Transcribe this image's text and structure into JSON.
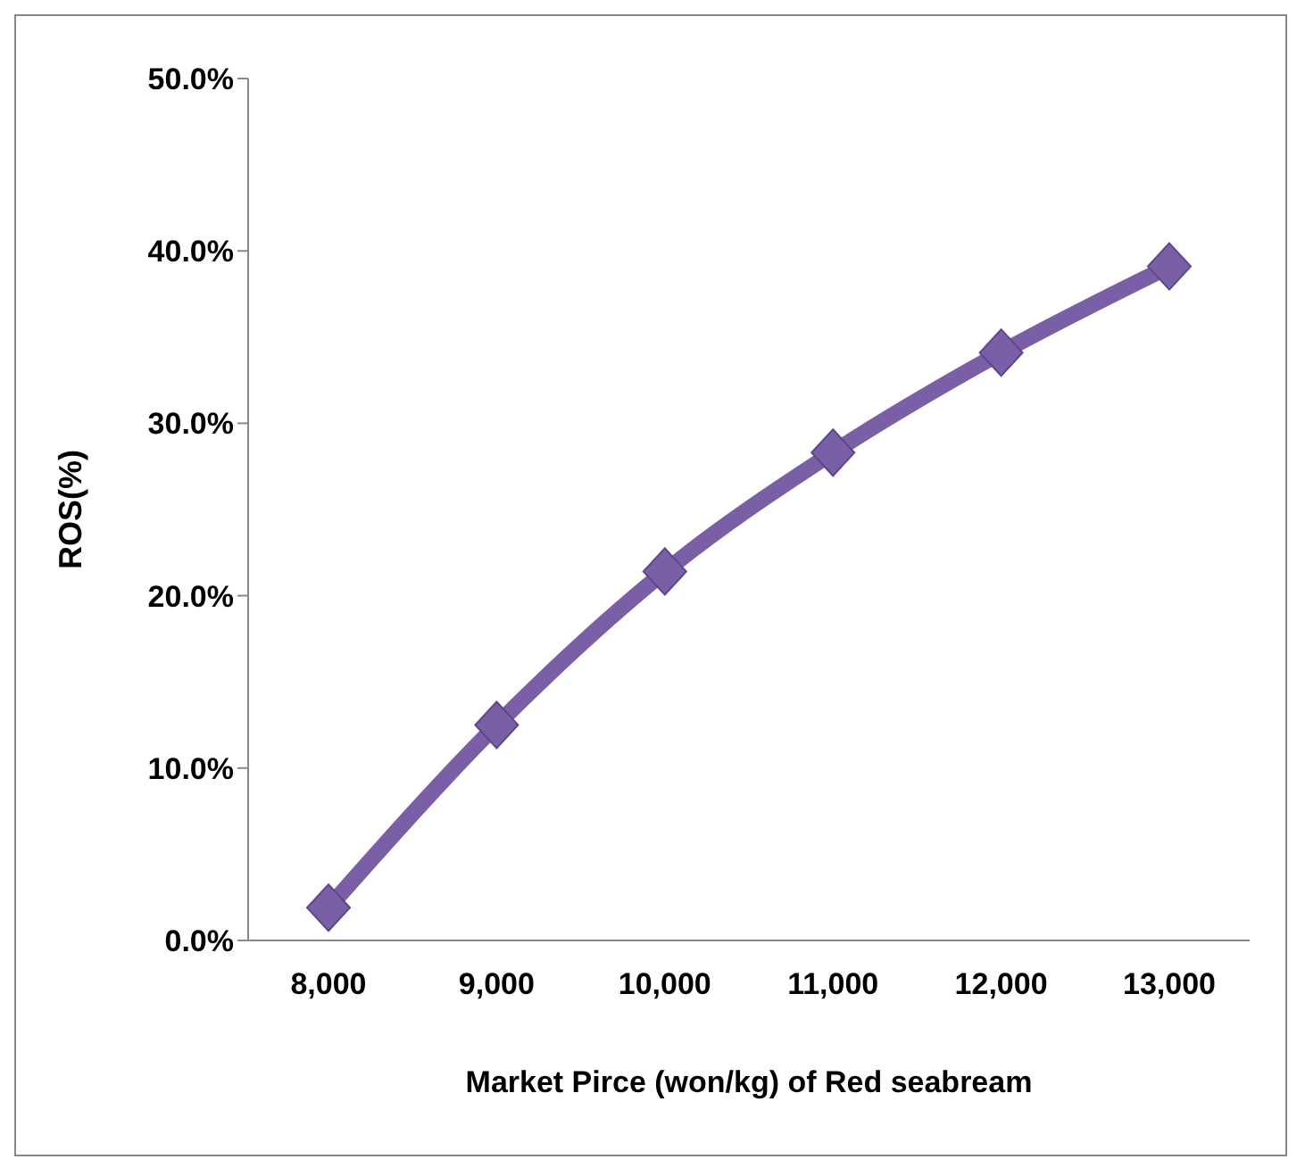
{
  "chart_data": {
    "type": "line",
    "xlabel": "Market Pirce (won/kg) of Red seabream",
    "ylabel": "ROS(%)",
    "categories": [
      "8,000",
      "9,000",
      "10,000",
      "11,000",
      "12,000",
      "13,000"
    ],
    "series": [
      {
        "color": "#7b5fa6",
        "values": [
          1.9,
          12.5,
          21.4,
          28.3,
          34.1,
          39.1
        ]
      }
    ],
    "ylim": [
      0,
      50
    ],
    "yticks": [
      {
        "value": 0,
        "label": "0.0%"
      },
      {
        "value": 10,
        "label": "10.0%"
      },
      {
        "value": 20,
        "label": "20.0%"
      },
      {
        "value": 30,
        "label": "30.0%"
      },
      {
        "value": 40,
        "label": "40.0%"
      },
      {
        "value": 50,
        "label": "50.0%"
      }
    ],
    "marker": "diamond",
    "line_style": "solid",
    "grid": false,
    "legend": false
  }
}
